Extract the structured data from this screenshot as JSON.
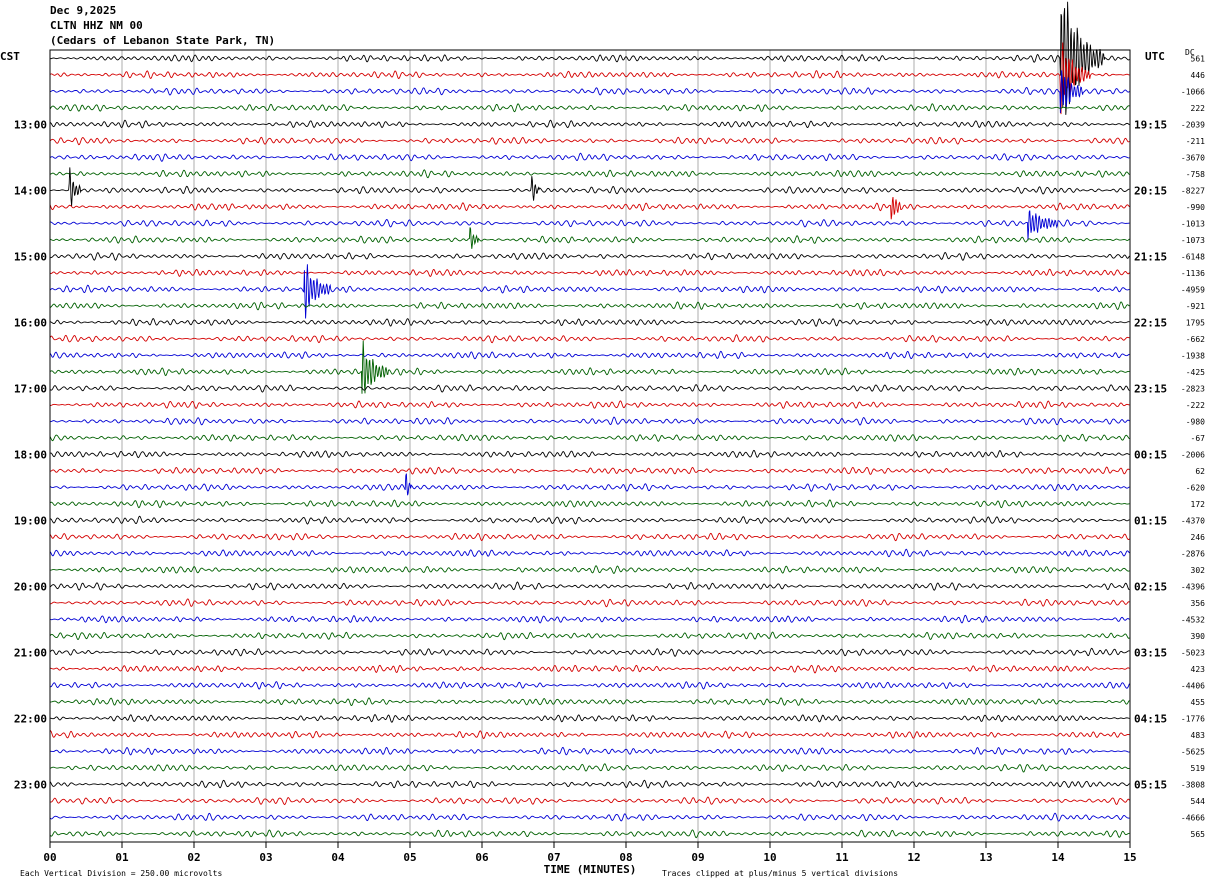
{
  "header": {
    "date": "Dec 9,2025",
    "channel": "CLTN HHZ NM 00",
    "location": "(Cedars of Lebanon State Park, TN)"
  },
  "chart_data": {
    "type": "line",
    "title": "Dec 9,2025",
    "left_tz": "CST",
    "right_tz": "UTC",
    "dc_label": "DC",
    "xlabel": "TIME (MINUTES)",
    "x_ticks": [
      "00",
      "01",
      "02",
      "03",
      "04",
      "05",
      "06",
      "07",
      "08",
      "09",
      "10",
      "11",
      "12",
      "13",
      "14",
      "15"
    ],
    "xlim": [
      0,
      15
    ],
    "left_hour_labels": [
      "13:00",
      "14:00",
      "15:00",
      "16:00",
      "17:00",
      "18:00",
      "19:00",
      "20:00",
      "21:00",
      "22:00",
      "23:00"
    ],
    "right_hour_labels": [
      "19:15",
      "20:15",
      "21:15",
      "22:15",
      "23:15",
      "00:15",
      "01:15",
      "02:15",
      "03:15",
      "04:15",
      "05:15"
    ],
    "dc_offsets": [
      "561",
      "446",
      "-1066",
      "222",
      "-2039",
      "-211",
      "-3670",
      "-758",
      "-8227",
      "-990",
      "-1013",
      "-1073",
      "-6148",
      "-1136",
      "-4959",
      "-921",
      "1795",
      "-662",
      "-1938",
      "-425",
      "-2823",
      "-222",
      "-980",
      "-67",
      "-2006",
      "62",
      "-620",
      "172",
      "-4370",
      "246",
      "-2876",
      "302",
      "-4396",
      "356",
      "-4532",
      "390",
      "-5023",
      "423",
      "-4406",
      "455",
      "-1776",
      "483",
      "-5625",
      "519",
      "-3808",
      "544",
      "-4666",
      "565"
    ],
    "trace_colors": [
      "#000000",
      "#d40000",
      "#0000d4",
      "#006000"
    ],
    "events": [
      {
        "row": 0,
        "minute": 14.05,
        "amplitude": 9,
        "duration": 0.6
      },
      {
        "row": 1,
        "minute": 14.05,
        "amplitude": 4,
        "duration": 0.4
      },
      {
        "row": 2,
        "minute": 14.05,
        "amplitude": 3,
        "duration": 0.3
      },
      {
        "row": 8,
        "minute": 0.28,
        "amplitude": 2.2,
        "duration": 0.15
      },
      {
        "row": 8,
        "minute": 6.7,
        "amplitude": 1.3,
        "duration": 0.1
      },
      {
        "row": 9,
        "minute": 11.7,
        "amplitude": 1.8,
        "duration": 0.12
      },
      {
        "row": 10,
        "minute": 13.6,
        "amplitude": 1.6,
        "duration": 0.4
      },
      {
        "row": 11,
        "minute": 5.85,
        "amplitude": 1.3,
        "duration": 0.1
      },
      {
        "row": 14,
        "minute": 3.55,
        "amplitude": 3.0,
        "duration": 0.35
      },
      {
        "row": 19,
        "minute": 4.35,
        "amplitude": 3.2,
        "duration": 0.35
      },
      {
        "row": 26,
        "minute": 4.95,
        "amplitude": 1.4,
        "duration": 0.06
      }
    ],
    "footer_left": "Each Vertical Division =  250.00 microvolts",
    "footer_right": "Traces clipped at plus/minus 5 vertical divisions"
  }
}
